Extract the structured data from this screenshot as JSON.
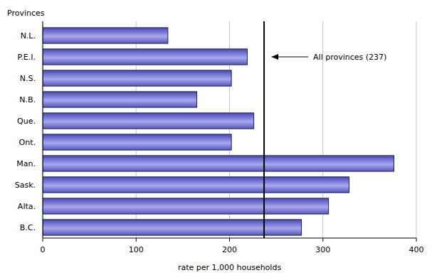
{
  "chart_data": {
    "type": "bar",
    "orientation": "horizontal",
    "x_label": "rate per 1,000 households",
    "y_label": "Provinces",
    "categories": [
      "N.L.",
      "P.E.I.",
      "N.S.",
      "N.B.",
      "Que.",
      "Ont.",
      "Man.",
      "Sask.",
      "Alta.",
      "B.C."
    ],
    "values": [
      134,
      219,
      202,
      165,
      226,
      202,
      376,
      328,
      306,
      277
    ],
    "color": "#8383e0",
    "xlim": [
      0,
      400
    ],
    "xticks": [
      0,
      100,
      200,
      300,
      400
    ],
    "grid": true,
    "reference": {
      "value": 237,
      "label": "All provinces (237)"
    }
  }
}
